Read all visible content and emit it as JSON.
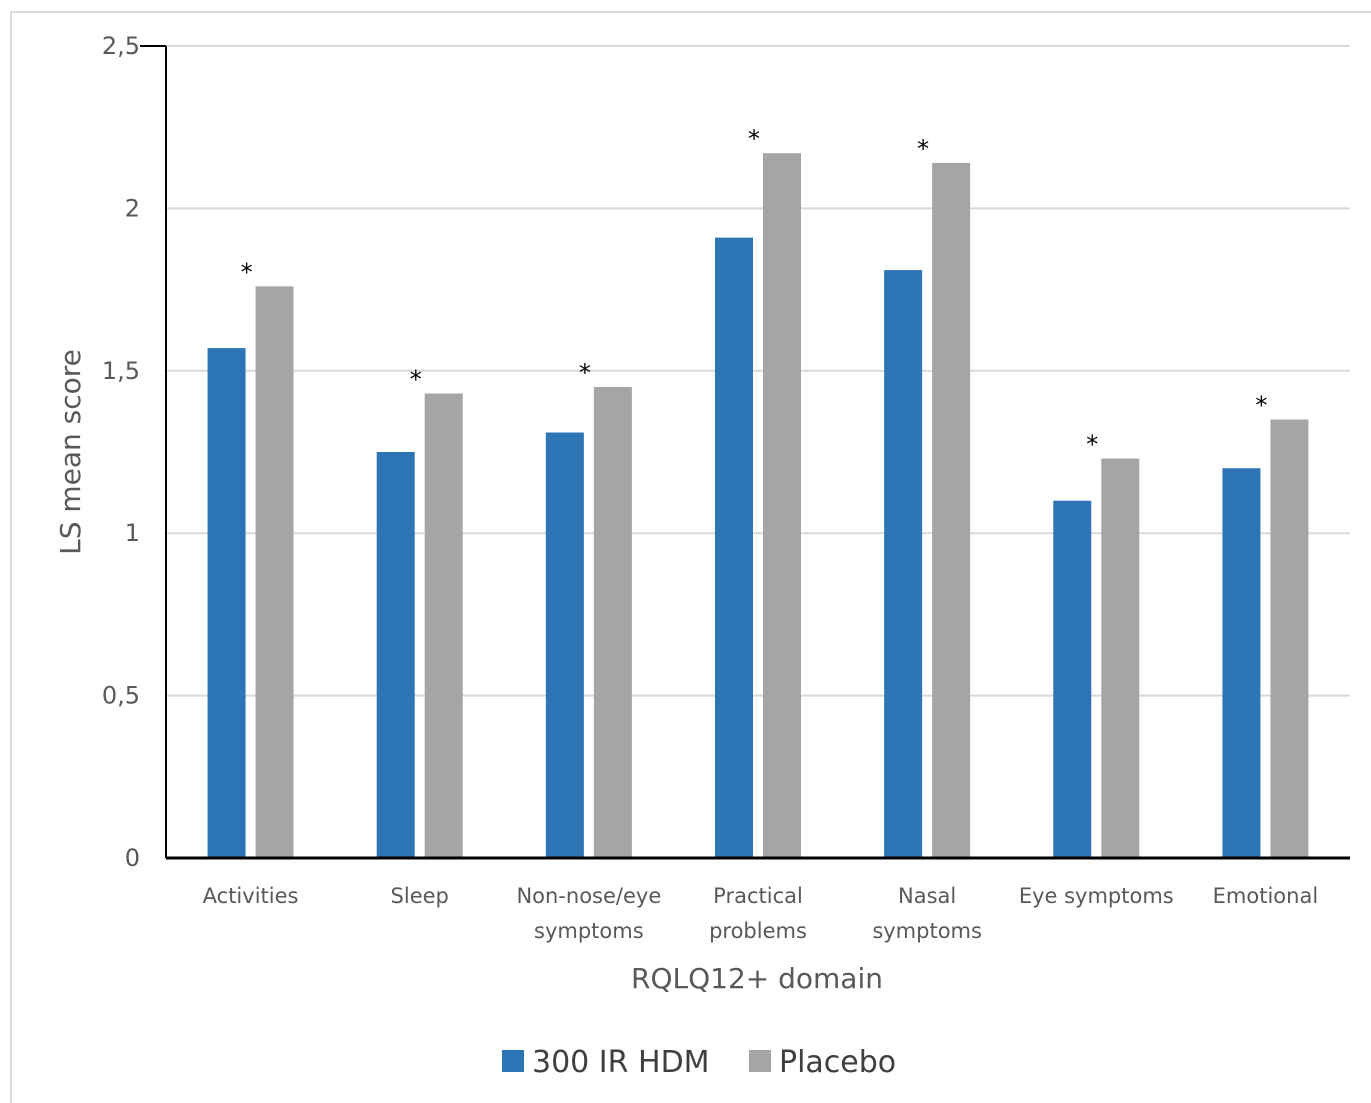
{
  "chart_data": {
    "type": "bar",
    "title": "",
    "xlabel": "RQLQ12+ domain",
    "ylabel": "LS mean score",
    "ylim": [
      0,
      2.5
    ],
    "yticks": [
      "0",
      "0,5",
      "1",
      "1,5",
      "2",
      "2,5"
    ],
    "grid": true,
    "legend_position": "bottom",
    "categories": [
      [
        "Activities"
      ],
      [
        "Sleep"
      ],
      [
        "Non-nose/eye",
        "symptoms"
      ],
      [
        "Practical",
        "problems"
      ],
      [
        "Nasal",
        "symptoms"
      ],
      [
        "Eye symptoms"
      ],
      [
        "Emotional"
      ]
    ],
    "series": [
      {
        "name": "300 IR HDM",
        "color": "#2e75b6",
        "values": [
          1.57,
          1.25,
          1.31,
          1.91,
          1.81,
          1.1,
          1.2
        ]
      },
      {
        "name": "Placebo",
        "color": "#a5a5a5",
        "values": [
          1.76,
          1.43,
          1.45,
          2.17,
          2.14,
          1.23,
          1.35
        ]
      }
    ],
    "annotations": [
      "*",
      "*",
      "*",
      "*",
      "*",
      "*",
      "*"
    ]
  }
}
